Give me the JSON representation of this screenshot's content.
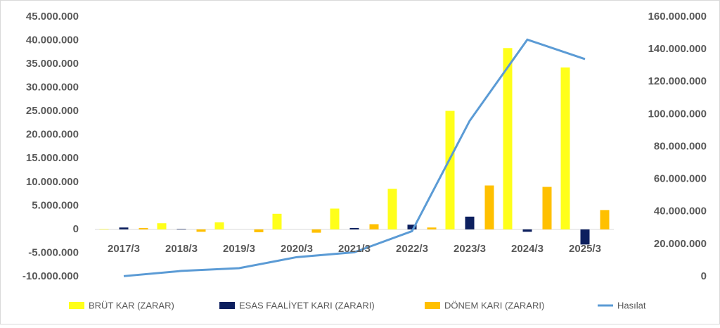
{
  "chart_data": {
    "type": "bar",
    "categories": [
      "2017/3",
      "2018/3",
      "2019/3",
      "2020/3",
      "2021/3",
      "2022/3",
      "2023/3",
      "2024/3",
      "2025/3"
    ],
    "series": [
      {
        "name": "BRÜT KAR (ZARAR)",
        "color": "#ffff1a",
        "values": [
          100000,
          1300000,
          1500000,
          3300000,
          4400000,
          8600000,
          25100000,
          38400000,
          34300000
        ]
      },
      {
        "name": "ESAS FAALİYET KARI (ZARARI)",
        "color": "#0c1f5e",
        "values": [
          400000,
          100000,
          0,
          0,
          300000,
          1000000,
          2700000,
          -500000,
          -3200000
        ]
      },
      {
        "name": "DÖNEM KARI (ZARARI)",
        "color": "#ffc000",
        "values": [
          300000,
          -500000,
          -600000,
          -700000,
          1100000,
          400000,
          9300000,
          9000000,
          4100000
        ]
      },
      {
        "name": "Hasılat",
        "color": "#5b9bd5",
        "type": "line",
        "axis": "y2",
        "values": [
          300000,
          3500000,
          5200000,
          12000000,
          15000000,
          28000000,
          96000000,
          146000000,
          134000000
        ]
      }
    ],
    "ylim": [
      -10000000,
      45000000
    ],
    "yticks": [
      {
        "value": -10000000,
        "label": "-10.000.000"
      },
      {
        "value": -5000000,
        "label": "-5.000.000"
      },
      0,
      {
        "value": 5000000,
        "label": "5.000.000"
      },
      {
        "value": 10000000,
        "label": "10.000.000"
      },
      {
        "value": 15000000,
        "label": "15.000.000"
      },
      {
        "value": 20000000,
        "label": "20.000.000"
      },
      {
        "value": 25000000,
        "label": "25.000.000"
      },
      {
        "value": 30000000,
        "label": "30.000.000"
      },
      {
        "value": 35000000,
        "label": "35.000.000"
      },
      {
        "value": 40000000,
        "label": "40.000.000"
      },
      {
        "value": 45000000,
        "label": "45.000.000"
      }
    ],
    "y2lim": [
      0,
      160000000
    ],
    "y2ticks": [
      0,
      {
        "value": 20000000,
        "label": "20.000.000"
      },
      {
        "value": 40000000,
        "label": "40.000.000"
      },
      {
        "value": 60000000,
        "label": "60.000.000"
      },
      {
        "value": 80000000,
        "label": "80.000.000"
      },
      {
        "value": 100000000,
        "label": "100.000.000"
      },
      {
        "value": 120000000,
        "label": "120.000.000"
      },
      {
        "value": 140000000,
        "label": "140.000.000"
      },
      {
        "value": 160000000,
        "label": "160.000.000"
      }
    ],
    "legend": "bottom"
  }
}
